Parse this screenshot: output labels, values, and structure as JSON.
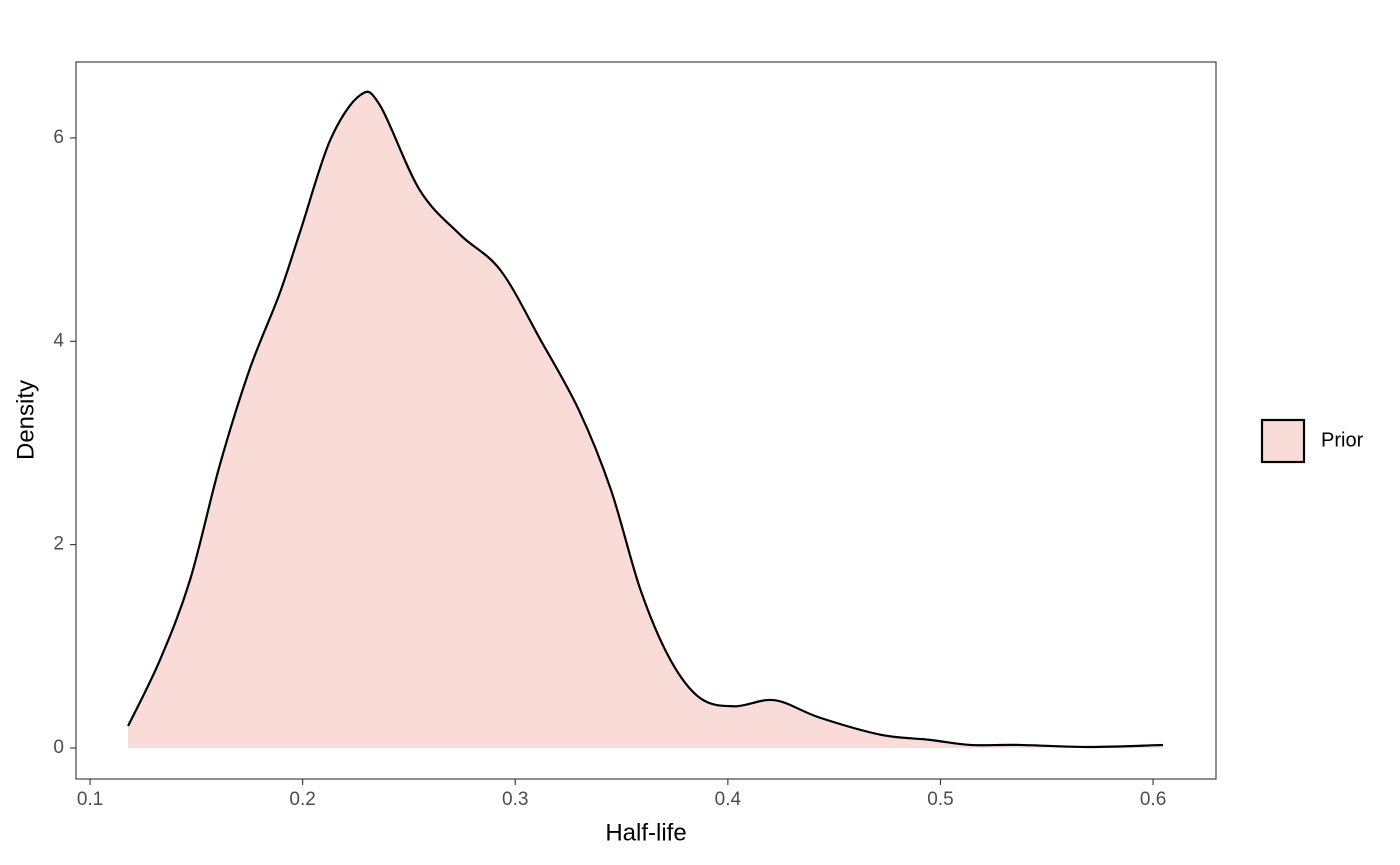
{
  "chart_data": {
    "type": "density",
    "x_label": "Half-life",
    "y_label": "Density",
    "x": [
      0.1179,
      0.1329,
      0.147,
      0.161,
      0.175,
      0.189,
      0.199,
      0.213,
      0.227,
      0.2364,
      0.255,
      0.274,
      0.293,
      0.312,
      0.33,
      0.345,
      0.359,
      0.373,
      0.387,
      0.403,
      0.422,
      0.443,
      0.472,
      0.495,
      0.514,
      0.537,
      0.57,
      0.6047
    ],
    "series": [
      {
        "name": "Prior",
        "color": "#f9dbd8",
        "values": [
          0.216,
          0.866,
          1.65,
          2.78,
          3.72,
          4.46,
          5.09,
          5.98,
          6.42,
          6.32,
          5.49,
          5.05,
          4.7,
          4.01,
          3.32,
          2.54,
          1.55,
          0.866,
          0.49,
          0.41,
          0.47,
          0.3,
          0.13,
          0.08,
          0.03,
          0.03,
          0.01,
          0.03
        ]
      }
    ],
    "xlim": [
      0.0934,
      0.6296
    ],
    "ylim": [
      -0.305,
      6.747
    ],
    "xticks": [
      0.1,
      0.2,
      0.3,
      0.4,
      0.5,
      0.6
    ],
    "yticks": [
      0,
      2,
      4,
      6
    ],
    "grid": false,
    "legend": "right"
  }
}
